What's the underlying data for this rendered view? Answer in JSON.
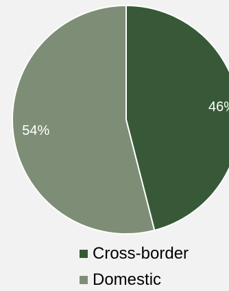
{
  "chart_data": {
    "type": "pie",
    "slices": [
      {
        "label": "Cross-border",
        "value": 46,
        "value_label": "46%",
        "color": "#375937"
      },
      {
        "label": "Domestic",
        "value": 54,
        "value_label": "54%",
        "color": "#7e8e76"
      }
    ],
    "legend_position": "bottom",
    "background": "#f2f2f2",
    "slice_border_color": "#ffffff"
  }
}
